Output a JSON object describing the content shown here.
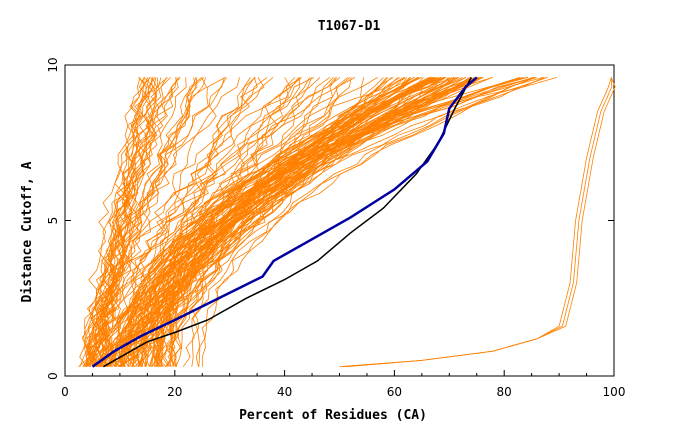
{
  "chart_data": {
    "type": "line",
    "title": "T1067-D1",
    "xlabel": "Percent of Residues (CA)",
    "ylabel": "Distance Cutoff, A",
    "xlim": [
      0,
      100
    ],
    "ylim": [
      0,
      10
    ],
    "x_ticks": [
      "0",
      "20",
      "40",
      "60",
      "80",
      "100"
    ],
    "y_ticks": [
      "0",
      "5",
      "10"
    ],
    "grid": false,
    "legend": "none",
    "colors": {
      "models": "#ff8000",
      "highlight": "#0000a0",
      "reference": "#000000"
    },
    "series": [
      {
        "color": "#000000",
        "x": [
          7,
          10,
          15,
          20,
          26,
          33,
          40,
          46,
          52,
          58,
          64,
          68,
          71,
          74
        ],
        "y": [
          0.3,
          0.6,
          1.1,
          1.4,
          1.8,
          2.5,
          3.1,
          3.7,
          4.6,
          5.4,
          6.5,
          7.5,
          8.6,
          9.6
        ]
      },
      {
        "color": "#0000a0",
        "x": [
          5,
          9,
          14,
          20,
          28,
          36,
          38,
          44,
          52,
          60,
          66,
          69,
          70,
          73,
          75
        ],
        "y": [
          0.3,
          0.8,
          1.3,
          1.8,
          2.5,
          3.2,
          3.7,
          4.3,
          5.1,
          6.0,
          6.9,
          7.8,
          8.6,
          9.3,
          9.6
        ]
      }
    ]
  }
}
